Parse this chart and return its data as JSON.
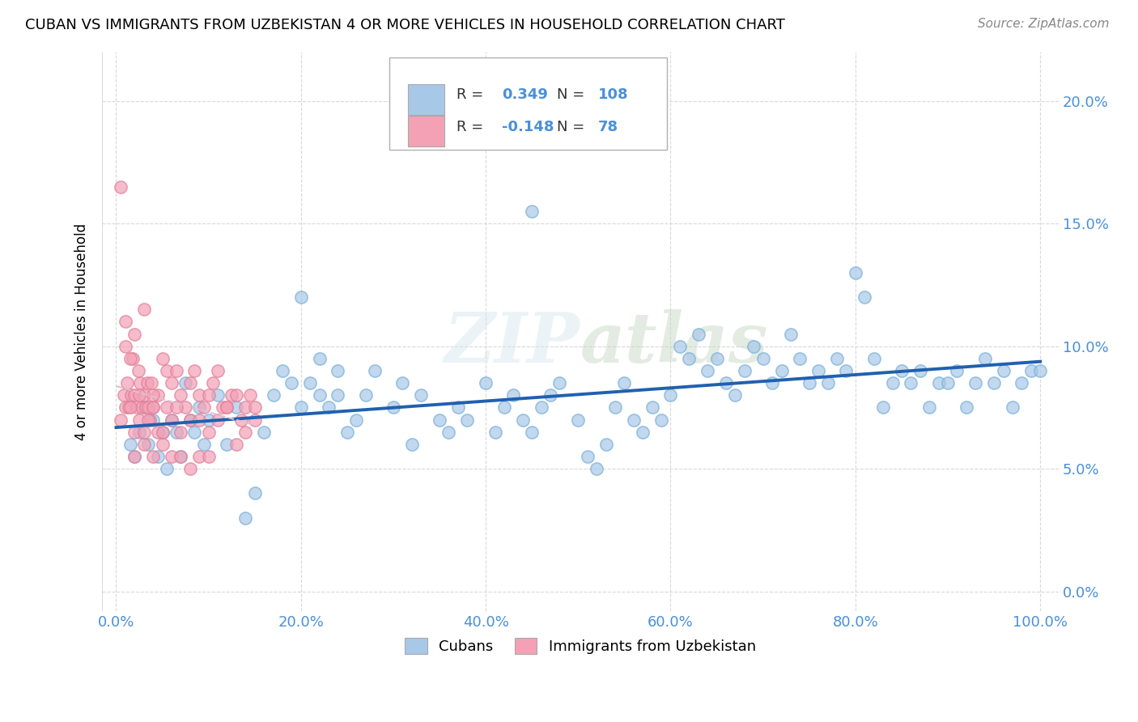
{
  "title": "CUBAN VS IMMIGRANTS FROM UZBEKISTAN 4 OR MORE VEHICLES IN HOUSEHOLD CORRELATION CHART",
  "source": "Source: ZipAtlas.com",
  "ylabel_label": "4 or more Vehicles in Household",
  "legend_label1": "Cubans",
  "legend_label2": "Immigrants from Uzbekistan",
  "R1": 0.349,
  "N1": 108,
  "R2": -0.148,
  "N2": 78,
  "color_blue": "#a8c8e8",
  "color_pink": "#f4a0b5",
  "color_blue_text": "#4a90d9",
  "color_line_blue": "#2060b0",
  "watermark": "ZIPatlas",
  "cubans_x": [
    1.5,
    2.0,
    2.5,
    3.0,
    3.5,
    4.0,
    4.5,
    5.0,
    5.5,
    6.0,
    6.5,
    7.0,
    7.5,
    8.0,
    8.5,
    9.0,
    9.5,
    10.0,
    11.0,
    12.0,
    13.0,
    14.0,
    15.0,
    16.0,
    17.0,
    18.0,
    19.0,
    20.0,
    21.0,
    22.0,
    23.0,
    24.0,
    25.0,
    26.0,
    27.0,
    28.0,
    30.0,
    31.0,
    32.0,
    33.0,
    35.0,
    36.0,
    37.0,
    38.0,
    40.0,
    41.0,
    42.0,
    43.0,
    44.0,
    45.0,
    46.0,
    47.0,
    48.0,
    50.0,
    51.0,
    52.0,
    53.0,
    54.0,
    55.0,
    56.0,
    57.0,
    58.0,
    59.0,
    60.0,
    61.0,
    62.0,
    63.0,
    64.0,
    65.0,
    66.0,
    67.0,
    68.0,
    69.0,
    70.0,
    71.0,
    72.0,
    73.0,
    74.0,
    75.0,
    76.0,
    77.0,
    78.0,
    79.0,
    80.0,
    81.0,
    82.0,
    83.0,
    84.0,
    85.0,
    86.0,
    87.0,
    88.0,
    89.0,
    90.0,
    91.0,
    92.0,
    93.0,
    94.0,
    95.0,
    96.0,
    97.0,
    98.0,
    99.0,
    100.0,
    45.0,
    20.0,
    22.0,
    24.0
  ],
  "cubans_y": [
    6.0,
    5.5,
    6.5,
    7.5,
    6.0,
    7.0,
    5.5,
    6.5,
    5.0,
    7.0,
    6.5,
    5.5,
    8.5,
    7.0,
    6.5,
    7.5,
    6.0,
    7.0,
    8.0,
    6.0,
    7.5,
    3.0,
    4.0,
    6.5,
    8.0,
    9.0,
    8.5,
    7.5,
    8.5,
    8.0,
    7.5,
    8.0,
    6.5,
    7.0,
    8.0,
    9.0,
    7.5,
    8.5,
    6.0,
    8.0,
    7.0,
    6.5,
    7.5,
    7.0,
    8.5,
    6.5,
    7.5,
    8.0,
    7.0,
    6.5,
    7.5,
    8.0,
    8.5,
    7.0,
    5.5,
    5.0,
    6.0,
    7.5,
    8.5,
    7.0,
    6.5,
    7.5,
    7.0,
    8.0,
    10.0,
    9.5,
    10.5,
    9.0,
    9.5,
    8.5,
    8.0,
    9.0,
    10.0,
    9.5,
    8.5,
    9.0,
    10.5,
    9.5,
    8.5,
    9.0,
    8.5,
    9.5,
    9.0,
    13.0,
    12.0,
    9.5,
    7.5,
    8.5,
    9.0,
    8.5,
    9.0,
    7.5,
    8.5,
    8.5,
    9.0,
    7.5,
    8.5,
    9.5,
    8.5,
    9.0,
    7.5,
    8.5,
    9.0,
    9.0,
    15.5,
    12.0,
    9.5,
    9.0
  ],
  "uzbek_x": [
    0.5,
    0.8,
    1.0,
    1.2,
    1.4,
    1.6,
    1.8,
    2.0,
    2.2,
    2.4,
    2.6,
    2.8,
    3.0,
    3.2,
    3.4,
    3.6,
    3.8,
    4.0,
    4.5,
    5.0,
    5.5,
    6.0,
    6.5,
    7.0,
    7.5,
    8.0,
    8.5,
    9.0,
    9.5,
    10.0,
    10.5,
    11.0,
    11.5,
    12.0,
    12.5,
    13.0,
    13.5,
    14.0,
    14.5,
    15.0,
    1.0,
    1.5,
    2.0,
    2.5,
    3.0,
    3.5,
    4.0,
    0.5,
    1.0,
    1.5,
    2.0,
    2.5,
    3.0,
    3.5,
    4.0,
    4.5,
    5.0,
    5.5,
    6.0,
    6.5,
    7.0,
    8.0,
    9.0,
    10.0,
    11.0,
    12.0,
    13.0,
    14.0,
    15.0,
    2.0,
    3.0,
    4.0,
    5.0,
    6.0,
    7.0,
    8.0,
    9.0,
    10.0
  ],
  "uzbek_y": [
    7.0,
    8.0,
    7.5,
    8.5,
    7.5,
    8.0,
    9.5,
    8.0,
    7.5,
    9.0,
    8.5,
    7.5,
    8.0,
    7.5,
    8.5,
    7.0,
    8.5,
    7.5,
    8.0,
    9.5,
    9.0,
    8.5,
    9.0,
    8.0,
    7.5,
    8.5,
    9.0,
    8.0,
    7.5,
    8.0,
    8.5,
    9.0,
    7.5,
    7.5,
    8.0,
    8.0,
    7.0,
    7.5,
    8.0,
    7.5,
    11.0,
    9.5,
    10.5,
    7.0,
    11.5,
    7.5,
    7.5,
    16.5,
    10.0,
    7.5,
    6.5,
    8.0,
    6.5,
    7.0,
    8.0,
    6.5,
    6.5,
    7.5,
    7.0,
    7.5,
    6.5,
    7.0,
    7.0,
    6.5,
    7.0,
    7.5,
    6.0,
    6.5,
    7.0,
    5.5,
    6.0,
    5.5,
    6.0,
    5.5,
    5.5,
    5.0,
    5.5,
    5.5
  ]
}
